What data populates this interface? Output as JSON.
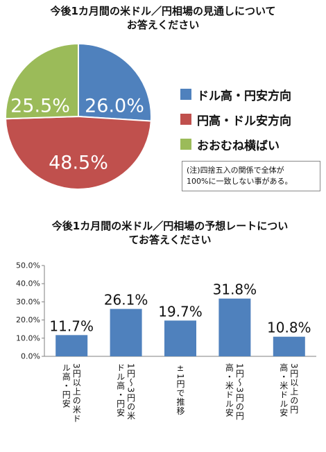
{
  "pie_title": [
    "今後1カ月間の米ドル／円相場の見通しについて",
    "お答えください"
  ],
  "bar_title": [
    "今後1カ月間の米ドル／円相場の予想レートについ",
    "てお答えください"
  ],
  "note": [
    "(注)四捨五入の関係で全体が",
    "100%に一致しない事がある。"
  ],
  "chart_data": [
    {
      "type": "pie",
      "title": "今後1カ月間の米ドル／円相場の見通しについてお答えください",
      "labels": [
        "ドル高・円安方向",
        "円高・ドル安方向",
        "おおむね横ばい"
      ],
      "values": [
        26.0,
        48.5,
        25.5
      ],
      "value_labels": [
        "26.0%",
        "48.5%",
        "25.5%"
      ],
      "colors": [
        "#4f81bd",
        "#c0504d",
        "#9bbb59"
      ],
      "legend_position": "right"
    },
    {
      "type": "bar",
      "title": "今後1カ月間の米ドル／円相場の予想レートについてお答えください",
      "categories": [
        [
          "3円以上の米ド",
          "ル高・円安"
        ],
        [
          "1円～3円の米",
          "ドル高・円安"
        ],
        [
          "±1円で推移"
        ],
        [
          "1円～3円の円",
          "高・米ドル安"
        ],
        [
          "3円以上の円",
          "高・米ドル安"
        ]
      ],
      "values": [
        11.7,
        26.1,
        19.7,
        31.8,
        10.8
      ],
      "value_labels": [
        "11.7%",
        "26.1%",
        "19.7%",
        "31.8%",
        "10.8%"
      ],
      "yticks": [
        "0.0%",
        "10.0%",
        "20.0%",
        "30.0%",
        "40.0%",
        "50.0%"
      ],
      "ylim": [
        0,
        50
      ],
      "color": "#4f81bd",
      "grid": false
    }
  ]
}
